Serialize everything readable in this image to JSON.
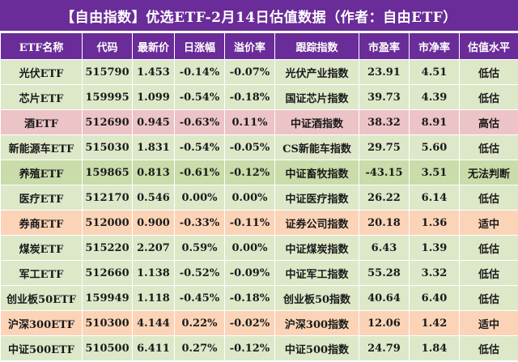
{
  "title": "【自由指数】优选ETF-2月14日估值数据（作者：自由ETF）",
  "colors": {
    "header": "#6a2c98",
    "low": "#dde8c9",
    "high": "#ecc3c6",
    "unknown": "#c9dca9",
    "fair": "#fbd3b6"
  },
  "columns": [
    "ETF名称",
    "代码",
    "最新价",
    "日涨幅",
    "溢价率",
    "跟踪指数",
    "市盈率",
    "市净率",
    "估值水平"
  ],
  "rows": [
    {
      "style": "green",
      "cells": [
        "光伏ETF",
        "515790",
        "1.453",
        "-0.14%",
        "-0.07%",
        "光伏产业指数",
        "23.91",
        "4.51",
        "低估"
      ]
    },
    {
      "style": "green",
      "cells": [
        "芯片ETF",
        "159995",
        "1.099",
        "-0.54%",
        "-0.18%",
        "国证芯片指数",
        "39.73",
        "4.39",
        "低估"
      ]
    },
    {
      "style": "pink",
      "cells": [
        "酒ETF",
        "512690",
        "0.945",
        "-0.63%",
        "0.11%",
        "中证酒指数",
        "38.32",
        "8.91",
        "高估"
      ]
    },
    {
      "style": "green",
      "cells": [
        "新能源车ETF",
        "515030",
        "1.831",
        "-0.54%",
        "-0.05%",
        "CS新能车指数",
        "29.75",
        "5.60",
        "低估"
      ]
    },
    {
      "style": "dgreen",
      "cells": [
        "养殖ETF",
        "159865",
        "0.813",
        "-0.61%",
        "-0.12%",
        "中证畜牧指数",
        "-43.15",
        "3.51",
        "无法判断"
      ]
    },
    {
      "style": "green",
      "cells": [
        "医疗ETF",
        "512170",
        "0.546",
        "0.00%",
        "0.00%",
        "中证医疗指数",
        "26.22",
        "6.14",
        "低估"
      ]
    },
    {
      "style": "orange",
      "cells": [
        "券商ETF",
        "512000",
        "0.900",
        "-0.33%",
        "-0.11%",
        "证券公司指数",
        "20.18",
        "1.36",
        "适中"
      ]
    },
    {
      "style": "green",
      "cells": [
        "煤炭ETF",
        "515220",
        "2.207",
        "0.59%",
        "0.00%",
        "中证煤炭指数",
        "6.43",
        "1.39",
        "低估"
      ]
    },
    {
      "style": "green",
      "cells": [
        "军工ETF",
        "512660",
        "1.138",
        "-0.52%",
        "-0.09%",
        "中证军工指数",
        "55.28",
        "3.32",
        "低估"
      ]
    },
    {
      "style": "green",
      "cells": [
        "创业板50ETF",
        "159949",
        "1.118",
        "-0.45%",
        "-0.18%",
        "创业板50指数",
        "40.64",
        "6.40",
        "低估"
      ]
    },
    {
      "style": "orange",
      "cells": [
        "沪深300ETF",
        "510300",
        "4.144",
        "0.22%",
        "-0.02%",
        "沪深300指数",
        "12.06",
        "1.42",
        "适中"
      ]
    },
    {
      "style": "green",
      "cells": [
        "中证500ETF",
        "510500",
        "6.411",
        "0.27%",
        "-0.12%",
        "中证500指数",
        "24.79",
        "1.84",
        "低估"
      ]
    }
  ]
}
